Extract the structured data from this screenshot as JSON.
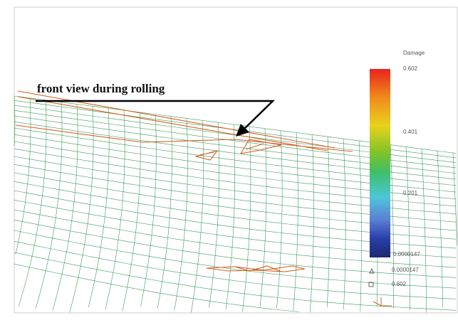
{
  "annotation": "front view during rolling",
  "legend": {
    "title": "Damage",
    "ticks": [
      "0.602",
      "0.401",
      "0.201",
      "0.0000147"
    ],
    "min_marker": "0.0000147",
    "max_marker": "0.602"
  }
}
